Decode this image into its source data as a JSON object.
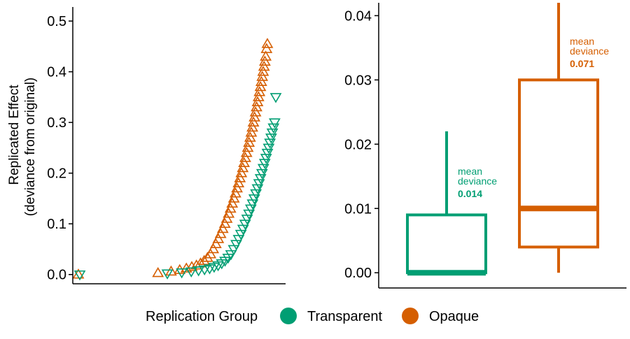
{
  "chart_data": [
    {
      "type": "scatter",
      "ylabel_line1": "Replicated Effect",
      "ylabel_line2": "(deviance from original)",
      "xlabel": "",
      "ylim": [
        -0.01,
        0.525
      ],
      "yticks": [
        "0.0",
        "0.1",
        "0.2",
        "0.3",
        "0.4",
        "0.5"
      ],
      "ytick_values": [
        0.0,
        0.1,
        0.2,
        0.3,
        0.4,
        0.5
      ],
      "x_axis_ticks": false,
      "grid": false,
      "series": [
        {
          "name": "Opaque",
          "marker": "triangle-up",
          "points": [
            0.0,
            0.003,
            0.006,
            0.009,
            0.012,
            0.015,
            0.018,
            0.022,
            0.027,
            0.033,
            0.04,
            0.05,
            0.06,
            0.07,
            0.08,
            0.09,
            0.1,
            0.11,
            0.12,
            0.13,
            0.14,
            0.15,
            0.16,
            0.17,
            0.18,
            0.19,
            0.2,
            0.21,
            0.22,
            0.23,
            0.24,
            0.25,
            0.26,
            0.27,
            0.28,
            0.29,
            0.3,
            0.31,
            0.32,
            0.33,
            0.34,
            0.35,
            0.36,
            0.37,
            0.38,
            0.39,
            0.4,
            0.41,
            0.42,
            0.43,
            0.445,
            0.455
          ]
        },
        {
          "name": "Transparent",
          "marker": "triangle-down",
          "points": [
            0.0,
            0.002,
            0.004,
            0.006,
            0.008,
            0.01,
            0.012,
            0.015,
            0.018,
            0.022,
            0.027,
            0.033,
            0.04,
            0.05,
            0.06,
            0.07,
            0.08,
            0.09,
            0.1,
            0.11,
            0.12,
            0.13,
            0.14,
            0.15,
            0.16,
            0.17,
            0.18,
            0.19,
            0.2,
            0.21,
            0.22,
            0.23,
            0.24,
            0.25,
            0.26,
            0.27,
            0.28,
            0.29,
            0.3,
            0.35
          ]
        }
      ]
    },
    {
      "type": "box",
      "ylim": [
        -0.0015,
        0.042
      ],
      "yticks": [
        "0.00",
        "0.01",
        "0.02",
        "0.03",
        "0.04"
      ],
      "ytick_values": [
        0.0,
        0.01,
        0.02,
        0.03,
        0.04
      ],
      "grid": false,
      "boxes": [
        {
          "name": "Transparent",
          "color": "#009E73",
          "q1": 0.0,
          "median": 0.0,
          "q3": 0.009,
          "whisker_low": 0.0,
          "whisker_high": 0.022,
          "annotation_line1": "mean",
          "annotation_line2": "deviance",
          "annotation_value": "0.014"
        },
        {
          "name": "Opaque",
          "color": "#D55E00",
          "q1": 0.004,
          "median": 0.01,
          "q3": 0.03,
          "whisker_low": 0.0,
          "whisker_high": 0.042,
          "annotation_line1": "mean",
          "annotation_line2": "deviance",
          "annotation_value": "0.071"
        }
      ]
    }
  ],
  "legend": {
    "title": "Replication Group",
    "placement": "bottom",
    "items": [
      {
        "label": "Transparent",
        "color": "#009E73"
      },
      {
        "label": "Opaque",
        "color": "#D55E00"
      }
    ]
  },
  "colors": {
    "transparent": "#009E73",
    "opaque": "#D55E00",
    "axis": "#000000"
  }
}
